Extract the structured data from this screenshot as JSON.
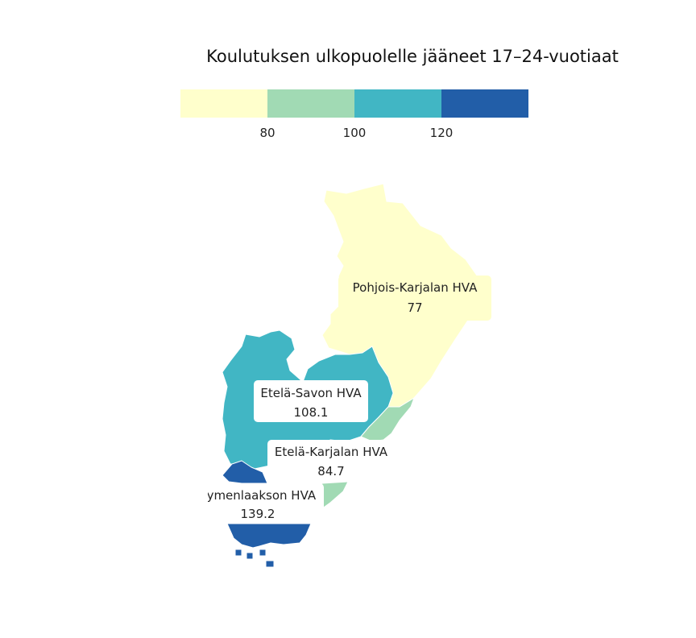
{
  "map": {
    "title": "Koulutuksen ulkopuolelle jääneet 17–24-vuotiaat"
  },
  "legend": {
    "colors": [
      "#ffffcc",
      "#a1dab4",
      "#41b6c4",
      "#225ea8"
    ],
    "ticks": [
      "80",
      "100",
      "120"
    ]
  },
  "regions": [
    {
      "id": "pohjois-karjala",
      "name": "Pohjois-Karjalan HVA",
      "value": "77",
      "color": "#ffffcc"
    },
    {
      "id": "etela-savo",
      "name": "Etelä-Savon HVA",
      "value": "108.1",
      "color": "#41b6c4"
    },
    {
      "id": "etela-karjala",
      "name": "Etelä-Karjalan HVA",
      "value": "84.7",
      "color": "#a1dab4"
    },
    {
      "id": "kymenlaakso",
      "name": "Kymenlaakson HVA",
      "value": "139.2",
      "color": "#225ea8"
    }
  ]
}
